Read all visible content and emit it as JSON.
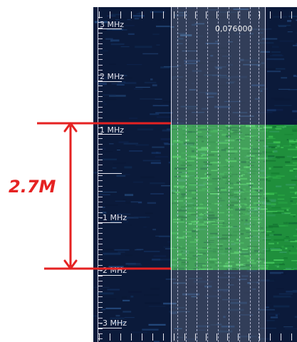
{
  "waterfall": {
    "center_frequency": "0,076000",
    "freq_labels": [
      "3 MHz",
      "2 MHz",
      "1 MHz",
      "-1 MHz",
      "-2 MHz",
      "-3 MHz"
    ]
  },
  "annotation": {
    "bandwidth_label": "2.7M",
    "color": "#e52222"
  }
}
